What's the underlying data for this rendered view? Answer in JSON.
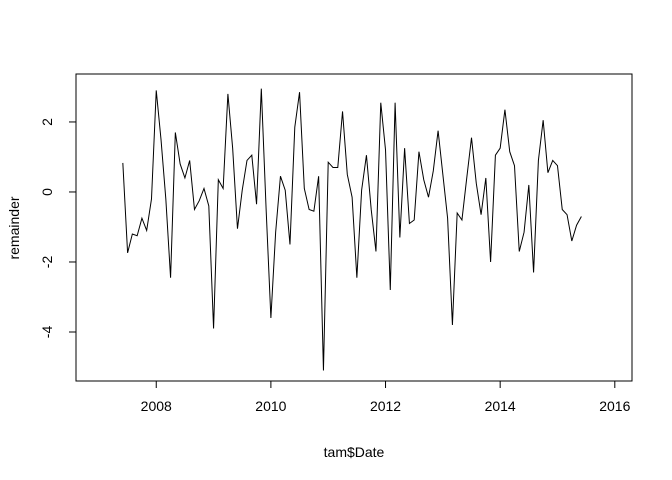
{
  "chart_data": {
    "type": "line",
    "xlabel": "tam$Date",
    "ylabel": "remainder",
    "xlim": [
      2006.6,
      2016.3
    ],
    "xticks": [
      2008,
      2010,
      2012,
      2014,
      2016
    ],
    "ylim": [
      -5.4,
      3.37
    ],
    "yticks": [
      -4,
      -2,
      0,
      2
    ],
    "series": [
      {
        "color": "#000000",
        "x": [
          2007.417,
          2007.5,
          2007.583,
          2007.667,
          2007.75,
          2007.833,
          2007.917,
          2008,
          2008.083,
          2008.167,
          2008.25,
          2008.333,
          2008.417,
          2008.5,
          2008.583,
          2008.667,
          2008.75,
          2008.833,
          2008.917,
          2009,
          2009.083,
          2009.167,
          2009.25,
          2009.333,
          2009.417,
          2009.5,
          2009.583,
          2009.667,
          2009.75,
          2009.833,
          2009.917,
          2010,
          2010.083,
          2010.167,
          2010.25,
          2010.333,
          2010.417,
          2010.5,
          2010.583,
          2010.667,
          2010.75,
          2010.833,
          2010.917,
          2011,
          2011.083,
          2011.167,
          2011.25,
          2011.333,
          2011.417,
          2011.5,
          2011.583,
          2011.667,
          2011.75,
          2011.833,
          2011.917,
          2012,
          2012.083,
          2012.167,
          2012.25,
          2012.333,
          2012.417,
          2012.5,
          2012.583,
          2012.667,
          2012.75,
          2012.833,
          2012.917,
          2013,
          2013.083,
          2013.167,
          2013.25,
          2013.333,
          2013.417,
          2013.5,
          2013.583,
          2013.667,
          2013.75,
          2013.833,
          2013.917,
          2014,
          2014.083,
          2014.167,
          2014.25,
          2014.333,
          2014.417,
          2014.5,
          2014.583,
          2014.667,
          2014.75,
          2014.833,
          2014.917,
          2015,
          2015.083,
          2015.167,
          2015.25,
          2015.333,
          2015.417
        ],
        "values": [
          0.83,
          -1.74,
          -1.2,
          -1.25,
          -0.75,
          -1.1,
          -0.2,
          2.9,
          1.5,
          -0.2,
          -2.45,
          1.7,
          0.8,
          0.4,
          0.9,
          -0.5,
          -0.25,
          0.1,
          -0.4,
          -3.9,
          0.35,
          0.1,
          2.8,
          1.25,
          -1.05,
          0.05,
          0.9,
          1.05,
          -0.35,
          2.95,
          -0.5,
          -3.6,
          -1.15,
          0.45,
          0.05,
          -1.5,
          1.85,
          2.85,
          0.1,
          -0.5,
          -0.55,
          0.45,
          -5.1,
          0.85,
          0.7,
          0.7,
          2.3,
          0.5,
          -0.15,
          -2.45,
          0.05,
          1.05,
          -0.5,
          -1.7,
          2.55,
          1.2,
          -2.8,
          2.55,
          -1.3,
          1.25,
          -0.9,
          -0.8,
          1.15,
          0.35,
          -0.15,
          0.6,
          1.75,
          0.5,
          -0.75,
          -3.8,
          -0.6,
          -0.8,
          0.4,
          1.55,
          0.25,
          -0.65,
          0.4,
          -2.0,
          1.05,
          1.25,
          2.35,
          1.15,
          0.75,
          -1.7,
          -1.15,
          0.2,
          -2.3,
          0.9,
          2.05,
          0.55,
          0.9,
          0.75,
          -0.5,
          -0.65,
          -1.4,
          -0.95,
          -0.7
        ]
      }
    ]
  }
}
